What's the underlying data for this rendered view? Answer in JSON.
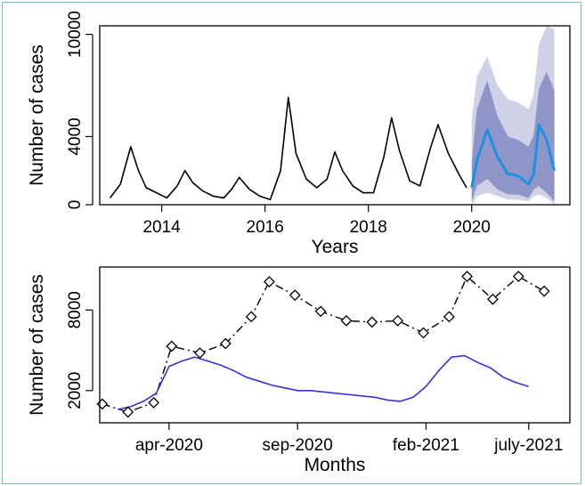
{
  "chart_data": [
    {
      "type": "line",
      "xlabel": "Years",
      "ylabel": "Number of cases",
      "xlim": [
        2012.8,
        2021.9
      ],
      "ylim": [
        0,
        10500
      ],
      "x_ticks": [
        2014,
        2016,
        2018,
        2020
      ],
      "y_ticks": [
        0,
        4000,
        10000
      ],
      "y_tick_labels_shown": [
        "0",
        "4000",
        "10000"
      ],
      "grid": false,
      "colors": {
        "observed": "#000000",
        "forecast": "#1e90e0",
        "band80": "#8f95c9",
        "band95": "#cfd1e6"
      },
      "series": [
        {
          "x": [
            2013.0,
            2013.2,
            2013.4,
            2013.55,
            2013.7,
            2013.9,
            2014.1,
            2014.3,
            2014.45,
            2014.6,
            2014.8,
            2015.0,
            2015.2,
            2015.35,
            2015.5,
            2015.7,
            2015.9,
            2016.1,
            2016.3,
            2016.45,
            2016.6,
            2016.8,
            2017.0,
            2017.2,
            2017.35,
            2017.5,
            2017.7,
            2017.9,
            2018.1,
            2018.3,
            2018.45,
            2018.6,
            2018.8,
            2019.0,
            2019.2,
            2019.35,
            2019.55,
            2019.75,
            2019.9
          ],
          "y": [
            400,
            1200,
            3400,
            2000,
            1000,
            700,
            400,
            1100,
            2000,
            1300,
            800,
            500,
            400,
            900,
            1600,
            900,
            500,
            300,
            2000,
            6300,
            3000,
            1500,
            1000,
            1500,
            3100,
            2000,
            1100,
            700,
            700,
            2800,
            5100,
            3200,
            1400,
            1100,
            3300,
            4700,
            3000,
            1800,
            1000
          ]
        },
        {
          "x": [
            2020.0,
            2020.1,
            2020.3,
            2020.5,
            2020.7,
            2020.9,
            2021.1,
            2021.2,
            2021.3,
            2021.45,
            2021.6
          ],
          "y": [
            1000,
            2600,
            4400,
            2800,
            1800,
            1700,
            1200,
            1800,
            4700,
            3800,
            2000
          ]
        },
        {
          "x": [
            2020.0,
            2020.1,
            2020.3,
            2020.5,
            2020.7,
            2020.9,
            2021.1,
            2021.2,
            2021.3,
            2021.45,
            2021.6
          ],
          "y_low": [
            200,
            1100,
            1500,
            900,
            600,
            600,
            400,
            900,
            1100,
            700,
            200
          ],
          "y_high": [
            2500,
            5600,
            7300,
            5200,
            4000,
            3800,
            3400,
            4100,
            6800,
            7800,
            6700
          ]
        },
        {
          "x": [
            2020.0,
            2020.1,
            2020.3,
            2020.5,
            2020.7,
            2020.9,
            2021.1,
            2021.2,
            2021.3,
            2021.45,
            2021.6
          ],
          "y_low": [
            0,
            500,
            700,
            500,
            300,
            300,
            200,
            500,
            600,
            400,
            0
          ],
          "y_high": [
            5000,
            7500,
            8700,
            7000,
            6200,
            6000,
            5600,
            6500,
            9400,
            10500,
            10300
          ]
        }
      ]
    },
    {
      "type": "line",
      "xlabel": "Months",
      "ylabel": "Number of cases",
      "xlim": [
        -0.7,
        17.6
      ],
      "ylim": [
        -400,
        11200
      ],
      "x_ticks": [
        2,
        7,
        12,
        16
      ],
      "x_tick_labels": [
        "apr-2020",
        "sep-2020",
        "feb-2021",
        "july-2021"
      ],
      "y_ticks": [
        2000,
        8000
      ],
      "y_tick_labels_shown": [
        "2000",
        "8000"
      ],
      "grid": false,
      "colors": {
        "predicted": "#3333dd",
        "observed": "#000000"
      },
      "series": [
        {
          "x": [
            0,
            0.5,
            1,
            1.5,
            2,
            2.5,
            3,
            3.5,
            4,
            4.5,
            5,
            5.5,
            6,
            6.5,
            7,
            7.5,
            8,
            8.5,
            9,
            9.5,
            10,
            10.5,
            11,
            11.5,
            12,
            12.5,
            13,
            13.5,
            14,
            14.5,
            15,
            15.5,
            16
          ],
          "y": [
            600,
            800,
            1200,
            1800,
            3800,
            4200,
            4500,
            4200,
            3900,
            3500,
            3000,
            2700,
            2400,
            2200,
            2000,
            2000,
            1900,
            1800,
            1700,
            1600,
            1500,
            1300,
            1200,
            1500,
            2300,
            3500,
            4500,
            4600,
            4100,
            3700,
            3000,
            2600,
            2300
          ]
        },
        {
          "x": [
            -0.6,
            0.4,
            1.4,
            2.1,
            3.2,
            4.2,
            5.2,
            5.9,
            6.9,
            7.9,
            8.9,
            9.9,
            10.9,
            11.9,
            12.9,
            13.6,
            14.6,
            15.6,
            16.6
          ],
          "y": [
            1000,
            400,
            1100,
            5300,
            4800,
            5500,
            7500,
            10100,
            9100,
            7900,
            7200,
            7100,
            7200,
            6300,
            7500,
            10500,
            8800,
            10500,
            9400
          ],
          "marker": "diamond",
          "line": "dashdot"
        }
      ]
    }
  ]
}
